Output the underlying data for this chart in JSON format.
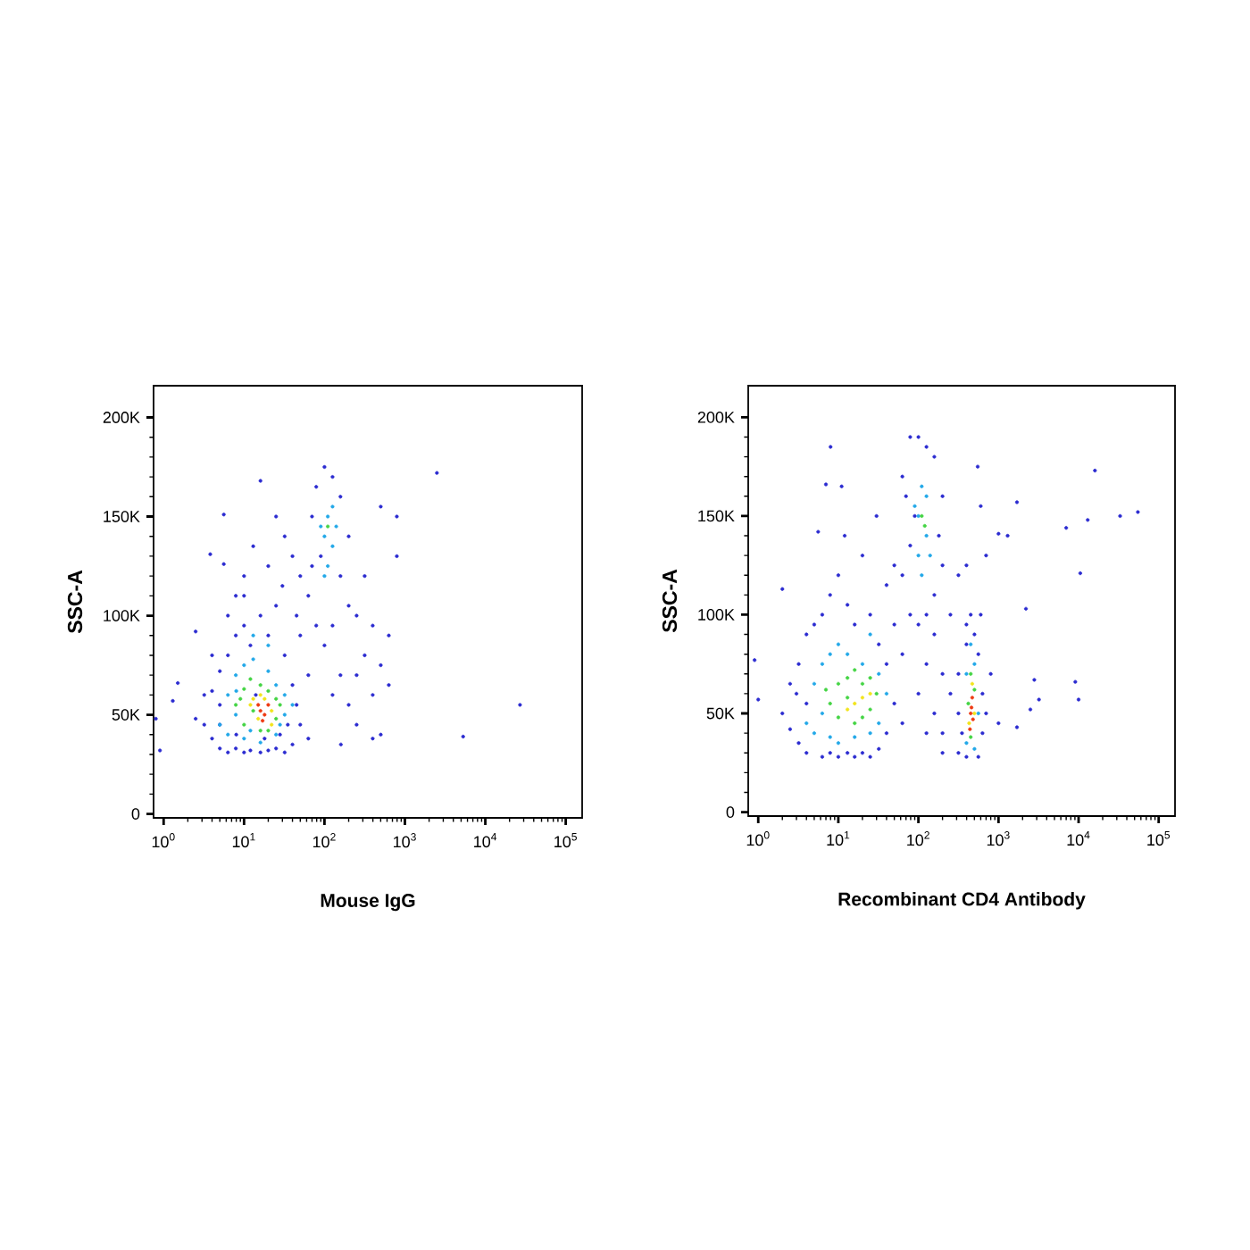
{
  "chart_data": [
    {
      "type": "scatter",
      "xlabel": "Mouse IgG",
      "ylabel": "SSC-A",
      "log": "x",
      "marker": "circle",
      "xlim": [
        0.75,
        160000
      ],
      "ylim": [
        -2000,
        216000
      ],
      "xticks": [
        {
          "value": 1,
          "label": "10$^{0}$"
        },
        {
          "value": 10,
          "label": "10$^{1}$"
        },
        {
          "value": 100,
          "label": "10$^{2}$"
        },
        {
          "value": 1000,
          "label": "10$^{3}$"
        },
        {
          "value": 10000,
          "label": "10$^{4}$"
        },
        {
          "value": 100000,
          "label": "10$^{5}$"
        }
      ],
      "yticks": [
        0,
        {
          "value": 50000,
          "label": "50K"
        },
        {
          "value": 100000,
          "label": "100K"
        },
        {
          "value": 150000,
          "label": "150K"
        },
        {
          "value": 200000,
          "label": "200K"
        }
      ],
      "series": [
        {
          "color": "#2b2bd0",
          "x": [
            0.8,
            0.9,
            1.3,
            1.5,
            2.5,
            3.8,
            5.6,
            5.6,
            16,
            3.2,
            4,
            4,
            5,
            5,
            5,
            6.3,
            6.3,
            7.9,
            7.9,
            10,
            10,
            12,
            12,
            16,
            16,
            20,
            20,
            25,
            25,
            32,
            32,
            40,
            40,
            50,
            50,
            63,
            63,
            2.5,
            7.9,
            10,
            13,
            20,
            25,
            30,
            40,
            45,
            32,
            50,
            63,
            70,
            79,
            79,
            100,
            100,
            126,
            158,
            158,
            200,
            200,
            126,
            90,
            70,
            251,
            251,
            316,
            316,
            398,
            398,
            501,
            501,
            631,
            631,
            794,
            794,
            501,
            251,
            200,
            160,
            2500,
            5300,
            27000,
            398,
            158,
            126,
            3.2,
            4,
            6.3,
            10,
            14,
            18,
            28,
            35,
            45,
            8,
            5
          ],
          "values": [
            48000,
            32000,
            57000,
            66000,
            92000,
            131000,
            126000,
            151000,
            168000,
            45000,
            38000,
            62000,
            33000,
            55000,
            72000,
            31000,
            80000,
            33000,
            90000,
            31000,
            95000,
            32000,
            85000,
            31000,
            100000,
            32000,
            90000,
            33000,
            105000,
            31000,
            80000,
            35000,
            65000,
            45000,
            90000,
            38000,
            70000,
            48000,
            110000,
            120000,
            135000,
            125000,
            150000,
            115000,
            130000,
            100000,
            140000,
            120000,
            110000,
            150000,
            165000,
            95000,
            175000,
            85000,
            170000,
            160000,
            120000,
            140000,
            105000,
            95000,
            130000,
            125000,
            100000,
            70000,
            80000,
            120000,
            60000,
            95000,
            155000,
            75000,
            90000,
            65000,
            150000,
            130000,
            40000,
            45000,
            55000,
            35000,
            172000,
            39000,
            55000,
            38000,
            70000,
            60000,
            60000,
            80000,
            100000,
            110000,
            60000,
            38000,
            40000,
            45000,
            55000,
            40000,
            45000
          ]
        },
        {
          "color": "#22a8e8",
          "x": [
            5,
            6.3,
            6.3,
            7.9,
            10,
            10,
            13,
            16,
            20,
            25,
            25,
            32,
            32,
            7.9,
            40,
            13,
            20,
            100,
            100,
            110,
            126,
            126,
            90,
            110,
            140,
            8,
            12,
            28
          ],
          "values": [
            45000,
            40000,
            60000,
            70000,
            38000,
            75000,
            78000,
            36000,
            72000,
            40000,
            65000,
            50000,
            60000,
            50000,
            55000,
            90000,
            85000,
            120000,
            140000,
            150000,
            135000,
            155000,
            145000,
            125000,
            145000,
            62000,
            42000,
            45000
          ]
        },
        {
          "color": "#44d444",
          "x": [
            7.9,
            10,
            10,
            12,
            16,
            16,
            20,
            20,
            25,
            25,
            13,
            28,
            110,
            9
          ],
          "values": [
            55000,
            45000,
            63000,
            68000,
            42000,
            65000,
            42000,
            62000,
            48000,
            58000,
            52000,
            55000,
            145000,
            58000
          ]
        },
        {
          "color": "#f2e41c",
          "x": [
            13,
            15,
            18,
            22,
            12,
            22,
            16
          ],
          "values": [
            58000,
            48000,
            58000,
            52000,
            55000,
            45000,
            60000
          ]
        },
        {
          "color": "#ee3a12",
          "x": [
            16,
            18,
            20,
            17,
            15
          ],
          "values": [
            52000,
            50000,
            55000,
            47000,
            55000
          ]
        }
      ]
    },
    {
      "type": "scatter",
      "xlabel": "Recombinant CD4 Antibody",
      "ylabel": "SSC-A",
      "log": "x",
      "marker": "circle",
      "xlim": [
        0.75,
        160000
      ],
      "ylim": [
        -2000,
        216000
      ],
      "xticks": [
        {
          "value": 1,
          "label": "10$^{0}$"
        },
        {
          "value": 10,
          "label": "10$^{1}$"
        },
        {
          "value": 100,
          "label": "10$^{2}$"
        },
        {
          "value": 1000,
          "label": "10$^{3}$"
        },
        {
          "value": 10000,
          "label": "10$^{4}$"
        },
        {
          "value": 100000,
          "label": "10$^{5}$"
        }
      ],
      "yticks": [
        0,
        {
          "value": 50000,
          "label": "50K"
        },
        {
          "value": 100000,
          "label": "100K"
        },
        {
          "value": 150000,
          "label": "150K"
        },
        {
          "value": 200000,
          "label": "200K"
        }
      ],
      "series": [
        {
          "color": "#2b2bd0",
          "x": [
            2,
            2.5,
            2.5,
            3.2,
            3.2,
            4,
            4,
            5,
            6.3,
            6.3,
            7.9,
            7.9,
            10,
            10,
            13,
            13,
            16,
            16,
            20,
            20,
            25,
            25,
            32,
            32,
            40,
            40,
            50,
            50,
            63,
            63,
            4,
            3,
            12,
            30,
            40,
            50,
            8,
            7,
            5.6,
            2,
            0.9,
            1,
            11,
            63,
            63,
            79,
            79,
            100,
            100,
            126,
            158,
            158,
            200,
            200,
            126,
            90,
            79,
            70,
            180,
            100,
            126,
            158,
            158,
            200,
            200,
            251,
            251,
            200,
            126,
            316,
            398,
            600,
            550,
            700,
            1000,
            1300,
            1700,
            2200,
            2800,
            3200,
            2500,
            1700,
            7000,
            10500,
            9100,
            10000,
            13000,
            16000,
            33000,
            55000,
            800,
            1000,
            316,
            316,
            316,
            398,
            398,
            450,
            501,
            560,
            631,
            631,
            560,
            398,
            350,
            700,
            600
          ],
          "values": [
            50000,
            65000,
            42000,
            35000,
            75000,
            90000,
            30000,
            95000,
            28000,
            100000,
            110000,
            30000,
            28000,
            120000,
            30000,
            105000,
            28000,
            95000,
            30000,
            130000,
            28000,
            100000,
            32000,
            85000,
            40000,
            75000,
            55000,
            95000,
            45000,
            80000,
            55000,
            60000,
            140000,
            150000,
            115000,
            125000,
            185000,
            166000,
            142000,
            113000,
            77000,
            57000,
            165000,
            120000,
            170000,
            190000,
            100000,
            190000,
            95000,
            185000,
            180000,
            110000,
            160000,
            125000,
            100000,
            150000,
            135000,
            160000,
            140000,
            60000,
            75000,
            50000,
            90000,
            70000,
            40000,
            60000,
            100000,
            30000,
            40000,
            120000,
            125000,
            155000,
            175000,
            130000,
            141000,
            140000,
            157000,
            103000,
            67000,
            57000,
            52000,
            43000,
            144000,
            121000,
            66000,
            57000,
            148000,
            173000,
            150000,
            152000,
            70000,
            45000,
            30000,
            50000,
            70000,
            85000,
            95000,
            100000,
            90000,
            80000,
            60000,
            40000,
            28000,
            28000,
            40000,
            50000,
            100000
          ]
        },
        {
          "color": "#22a8e8",
          "x": [
            4,
            5,
            5,
            6.3,
            7.9,
            7.9,
            10,
            10,
            13,
            16,
            20,
            25,
            32,
            32,
            40,
            6.3,
            25,
            100,
            100,
            110,
            126,
            126,
            90,
            140,
            110,
            398,
            398,
            501,
            501,
            450,
            560
          ],
          "values": [
            45000,
            40000,
            65000,
            75000,
            38000,
            80000,
            35000,
            85000,
            80000,
            38000,
            75000,
            40000,
            45000,
            70000,
            60000,
            50000,
            90000,
            130000,
            150000,
            165000,
            140000,
            160000,
            155000,
            130000,
            120000,
            35000,
            70000,
            75000,
            32000,
            85000,
            50000
          ]
        },
        {
          "color": "#44d444",
          "x": [
            7.9,
            10,
            10,
            13,
            16,
            16,
            20,
            25,
            25,
            13,
            20,
            30,
            7,
            110,
            120,
            450,
            450,
            501,
            420
          ],
          "values": [
            55000,
            48000,
            65000,
            68000,
            45000,
            72000,
            48000,
            52000,
            68000,
            58000,
            65000,
            60000,
            62000,
            150000,
            145000,
            38000,
            70000,
            62000,
            55000
          ]
        },
        {
          "color": "#f2e41c",
          "x": [
            16,
            20,
            13,
            430,
            470,
            500,
            25
          ],
          "values": [
            55000,
            58000,
            52000,
            45000,
            65000,
            50000,
            60000
          ]
        },
        {
          "color": "#ee3a12",
          "x": [
            450,
            470,
            440,
            480,
            460
          ],
          "values": [
            50000,
            58000,
            42000,
            47000,
            53000
          ]
        }
      ]
    }
  ]
}
